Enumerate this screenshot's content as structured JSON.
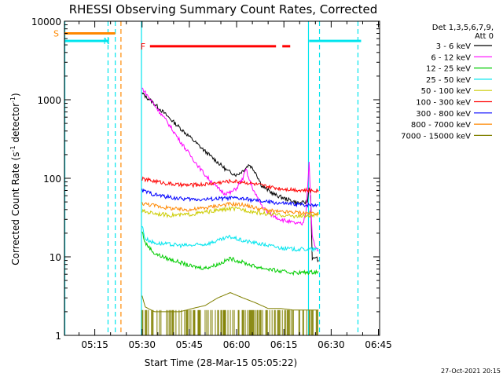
{
  "chart_data": {
    "type": "line",
    "title": "RHESSI Observing Summary Count Rates, Corrected",
    "ylabel": "Corrected Count Rate",
    "ylabel_units": "(s",
    "ylabel_units_sup1": "-1",
    "ylabel_units_mid": " detector",
    "ylabel_units_sup2": "-1",
    "ylabel_units_end": ")",
    "xlabel": "Start Time (28-Mar-15 05:05:22)",
    "yscale": "log",
    "ylim": [
      1,
      10000
    ],
    "xlim_minutes": [
      305.37,
      405.37
    ],
    "x_ticks": [
      {
        "label": "05:15",
        "m": 315
      },
      {
        "label": "05:30",
        "m": 330
      },
      {
        "label": "05:45",
        "m": 345
      },
      {
        "label": "06:00",
        "m": 360
      },
      {
        "label": "06:15",
        "m": 375
      },
      {
        "label": "06:30",
        "m": 390
      },
      {
        "label": "06:45",
        "m": 405
      }
    ],
    "y_ticks": [
      {
        "label": "1",
        "v": 1
      },
      {
        "label": "10",
        "v": 10
      },
      {
        "label": "100",
        "v": 100
      },
      {
        "label": "1000",
        "v": 1000
      },
      {
        "label": "10000",
        "v": 10000
      }
    ],
    "legend_header": [
      "Det 1,3,5,6,7,9,",
      "Att 0"
    ],
    "series": [
      {
        "name": "3 - 6 keV",
        "color": "#000000",
        "x": [
          330,
          333,
          336,
          340,
          345,
          350,
          354,
          357,
          360,
          362,
          364,
          366,
          368,
          372,
          376,
          380,
          382.5,
          383,
          383.5,
          384,
          385,
          386
        ],
        "y": [
          1200,
          960,
          740,
          520,
          340,
          220,
          160,
          125,
          110,
          125,
          150,
          120,
          80,
          62,
          54,
          48,
          50,
          80,
          60,
          9,
          10,
          9
        ]
      },
      {
        "name": "6 - 12 keV",
        "color": "#ff00ff",
        "x": [
          330,
          334,
          338,
          342,
          346,
          350,
          354,
          356,
          358,
          360,
          362,
          363,
          364,
          366,
          368,
          370,
          374,
          378,
          381,
          382,
          383,
          384,
          385,
          386
        ],
        "y": [
          1400,
          850,
          520,
          300,
          180,
          110,
          75,
          65,
          65,
          75,
          100,
          130,
          95,
          62,
          45,
          36,
          30,
          27,
          26,
          38,
          160,
          18,
          13,
          12
        ]
      },
      {
        "name": "12 - 25 keV",
        "color": "#00cc00",
        "x": [
          330,
          331,
          334,
          338,
          342,
          346,
          350,
          354,
          358,
          362,
          366,
          370,
          374,
          378,
          382,
          386
        ],
        "y": [
          21,
          15,
          11,
          9.5,
          8.5,
          7.5,
          7.2,
          8,
          9.5,
          8.5,
          7.5,
          7,
          6.5,
          6.3,
          6.3,
          6.5
        ]
      },
      {
        "name": "25 - 50 keV",
        "color": "#00e5ee",
        "x": [
          330,
          331,
          334,
          338,
          342,
          346,
          350,
          354,
          358,
          362,
          366,
          370,
          374,
          378,
          382,
          386
        ],
        "y": [
          25,
          17,
          15,
          14.5,
          14,
          14,
          14.5,
          16,
          18,
          16,
          15,
          14,
          13,
          12.5,
          12.5,
          12.5
        ]
      },
      {
        "name": "50 - 100 keV",
        "color": "#cccc00",
        "x": [
          330,
          334,
          338,
          342,
          346,
          350,
          354,
          358,
          362,
          366,
          370,
          374,
          378,
          382,
          386
        ],
        "y": [
          38,
          36,
          34,
          34,
          35,
          37,
          39,
          41,
          40,
          37,
          35,
          34,
          33,
          33,
          34
        ]
      },
      {
        "name": "100 - 300 keV",
        "color": "#ff0000",
        "x": [
          330,
          334,
          338,
          342,
          346,
          350,
          354,
          358,
          362,
          366,
          370,
          374,
          378,
          382,
          386
        ],
        "y": [
          98,
          92,
          86,
          82,
          82,
          84,
          88,
          92,
          90,
          84,
          78,
          74,
          72,
          70,
          70
        ]
      },
      {
        "name": "300 - 800 keV",
        "color": "#0000ff",
        "x": [
          330,
          334,
          338,
          342,
          346,
          350,
          354,
          358,
          362,
          366,
          370,
          374,
          378,
          382,
          386
        ],
        "y": [
          70,
          62,
          58,
          55,
          54,
          54,
          55,
          56,
          55,
          52,
          50,
          48,
          47,
          46,
          46
        ]
      },
      {
        "name": "800 - 7000 keV",
        "color": "#ff8800",
        "x": [
          330,
          334,
          338,
          342,
          346,
          350,
          354,
          358,
          362,
          366,
          370,
          374,
          378,
          382,
          386
        ],
        "y": [
          48,
          45,
          42,
          40,
          40,
          42,
          45,
          47,
          46,
          42,
          39,
          37,
          37,
          36,
          36
        ]
      },
      {
        "name": "7000 - 15000 keV",
        "color": "#808000",
        "x": [
          330,
          331,
          334,
          338,
          342,
          346,
          350,
          354,
          358,
          362,
          366,
          370,
          374,
          378,
          382,
          386
        ],
        "y": [
          3.2,
          2.3,
          2,
          2,
          2,
          2.2,
          2.4,
          3,
          3.5,
          3,
          2.6,
          2.2,
          2.2,
          2.1,
          2.1,
          2.1
        ]
      }
    ],
    "flag_bars": [
      {
        "label": "S",
        "color": "#ff8800",
        "x_start": 305.37,
        "x_end": 321.5,
        "y": 7000
      },
      {
        "label": "N",
        "color": "#00e5ee",
        "x_start": 305.37,
        "x_end": 319.2,
        "y": 5600
      },
      {
        "label": "F",
        "color": "#ff0000",
        "x_start": 332.5,
        "x_end": 372.5,
        "y": 4800
      },
      {
        "label": "",
        "color": "#ff0000",
        "x_start": 374.5,
        "x_end": 377,
        "y": 4800
      },
      {
        "label": "",
        "color": "#00e5ee",
        "x_start": 383,
        "x_end": 399.5,
        "y": 5600
      }
    ],
    "vlines": [
      {
        "x": 305.5,
        "color": "#00e5ee",
        "style": "solid"
      },
      {
        "x": 319.2,
        "color": "#00e5ee",
        "style": "dashed"
      },
      {
        "x": 321.5,
        "color": "#00e5ee",
        "style": "dashed"
      },
      {
        "x": 323.3,
        "color": "#ff8800",
        "style": "dashed"
      },
      {
        "x": 329.8,
        "color": "#00e5ee",
        "style": "solid"
      },
      {
        "x": 382.8,
        "color": "#00e5ee",
        "style": "solid"
      },
      {
        "x": 386.3,
        "color": "#00e5ee",
        "style": "dashed"
      },
      {
        "x": 398.5,
        "color": "#00e5ee",
        "style": "dashed"
      }
    ],
    "footer_date": "27-Oct-2021 20:15"
  }
}
